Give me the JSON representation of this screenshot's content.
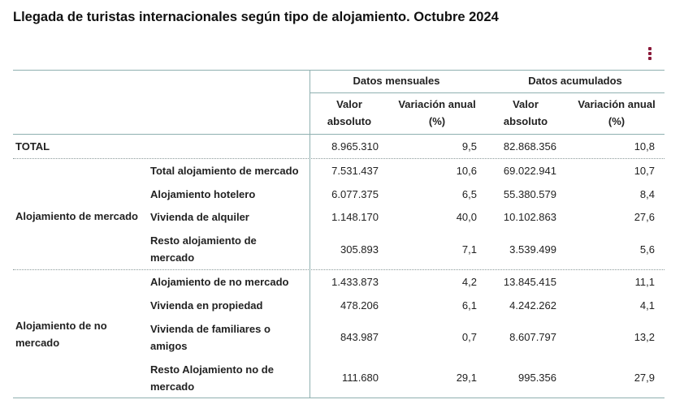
{
  "title": "Llegada de turistas internacionales según tipo de alojamiento. Octubre 2024",
  "menu_icon": "vertical-ellipsis-icon",
  "accent_color": "#8b1a3a",
  "header": {
    "group1": "Datos mensuales",
    "group2": "Datos acumulados",
    "col_valor": [
      "Valor",
      "absoluto"
    ],
    "col_var": [
      "Variación anual",
      "(%)"
    ]
  },
  "total": {
    "label": "TOTAL",
    "values": [
      "8.965.310",
      "9,5",
      "82.868.356",
      "10,8"
    ]
  },
  "groups": [
    {
      "label": [
        "Alojamiento de mercado"
      ],
      "rows": [
        {
          "label": [
            "Total alojamiento de mercado"
          ],
          "values": [
            "7.531.437",
            "10,6",
            "69.022.941",
            "10,7"
          ]
        },
        {
          "label": [
            "Alojamiento hotelero"
          ],
          "values": [
            "6.077.375",
            "6,5",
            "55.380.579",
            "8,4"
          ]
        },
        {
          "label": [
            "Vivienda de alquiler"
          ],
          "values": [
            "1.148.170",
            "40,0",
            "10.102.863",
            "27,6"
          ]
        },
        {
          "label": [
            "Resto alojamiento de",
            "mercado"
          ],
          "values": [
            "305.893",
            "7,1",
            "3.539.499",
            "5,6"
          ]
        }
      ]
    },
    {
      "label": [
        "Alojamiento de no",
        "mercado"
      ],
      "rows": [
        {
          "label": [
            "Alojamiento de no mercado"
          ],
          "values": [
            "1.433.873",
            "4,2",
            "13.845.415",
            "11,1"
          ]
        },
        {
          "label": [
            "Vivienda en propiedad"
          ],
          "values": [
            "478.206",
            "6,1",
            "4.242.262",
            "4,1"
          ]
        },
        {
          "label": [
            "Vivienda de familiares o",
            "amigos"
          ],
          "values": [
            "843.987",
            "0,7",
            "8.607.797",
            "13,2"
          ]
        },
        {
          "label": [
            "Resto Alojamiento no de",
            "mercado"
          ],
          "values": [
            "111.680",
            "29,1",
            "995.356",
            "27,9"
          ]
        }
      ]
    }
  ]
}
